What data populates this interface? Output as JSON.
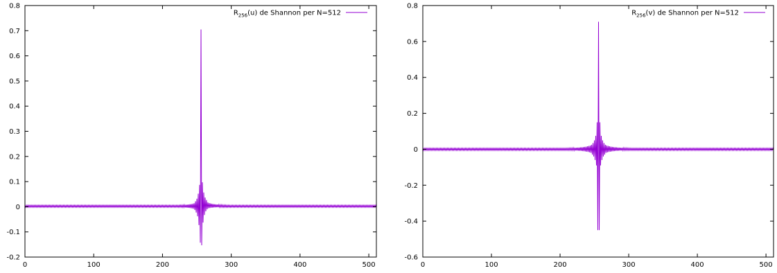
{
  "chart_data": [
    {
      "type": "line",
      "title": "",
      "xlabel": "",
      "ylabel": "",
      "xlim": [
        0,
        511
      ],
      "ylim": [
        -0.2,
        0.8
      ],
      "xticks": [
        0,
        100,
        200,
        300,
        400,
        500
      ],
      "yticks": [
        -0.2,
        -0.1,
        0,
        0.1,
        0.2,
        0.3,
        0.4,
        0.5,
        0.6,
        0.7,
        0.8
      ],
      "ytick_labels": [
        "-0.2",
        "-0.1",
        "0",
        "0.1",
        "0.2",
        "0.3",
        "0.4",
        "0.5",
        "0.6",
        "0.7",
        "0.8"
      ],
      "grid": false,
      "legend_position": "top-right",
      "legend": {
        "prefix": "R",
        "subscript": "256",
        "suffix": "(u) de Shannon per N=512"
      },
      "series": [
        {
          "color": "#9400d3",
          "x_range": [
            0,
            511
          ],
          "center": 256,
          "peak": 0.705,
          "oscillation": {
            "left_odd": [
              -0.145,
              -0.075,
              -0.04,
              -0.025,
              -0.015,
              -0.01
            ],
            "left_even": [
              0.0,
              0.085,
              0.05,
              0.03,
              0.02,
              0.012
            ],
            "right_odd": [
              -0.155,
              -0.065,
              -0.035,
              -0.02,
              -0.012,
              -0.008
            ],
            "right_even": [
              0.0,
              0.095,
              0.055,
              0.035,
              0.025,
              0.015
            ],
            "tail_amplitude": 0.004,
            "baseline": 0.002
          }
        }
      ]
    },
    {
      "type": "line",
      "title": "",
      "xlabel": "",
      "ylabel": "",
      "xlim": [
        0,
        511
      ],
      "ylim": [
        -0.6,
        0.8
      ],
      "xticks": [
        0,
        100,
        200,
        300,
        400,
        500
      ],
      "yticks": [
        -0.6,
        -0.4,
        -0.2,
        0,
        0.2,
        0.4,
        0.6,
        0.8
      ],
      "ytick_labels": [
        "-0.6",
        "-0.4",
        "-0.2",
        "0",
        "0.2",
        "0.4",
        "0.6",
        "0.8"
      ],
      "grid": false,
      "legend_position": "top-right",
      "legend": {
        "prefix": "R",
        "subscript": "256",
        "suffix": "(v) de Shannon per N=512"
      },
      "series": [
        {
          "color": "#9400d3",
          "x_range": [
            0,
            511
          ],
          "center": 256,
          "peak": 0.71,
          "oscillation": {
            "left_odd": [
              -0.45,
              -0.09,
              -0.06,
              -0.04,
              -0.03,
              -0.02
            ],
            "left_even": [
              0.0,
              0.15,
              0.075,
              0.05,
              0.035,
              0.025
            ],
            "right_odd": [
              -0.45,
              -0.09,
              -0.06,
              -0.04,
              -0.03,
              -0.02
            ],
            "right_even": [
              0.0,
              0.15,
              0.075,
              0.05,
              0.035,
              0.025
            ],
            "tail_amplitude": 0.006,
            "baseline": 0.0
          }
        }
      ]
    }
  ]
}
